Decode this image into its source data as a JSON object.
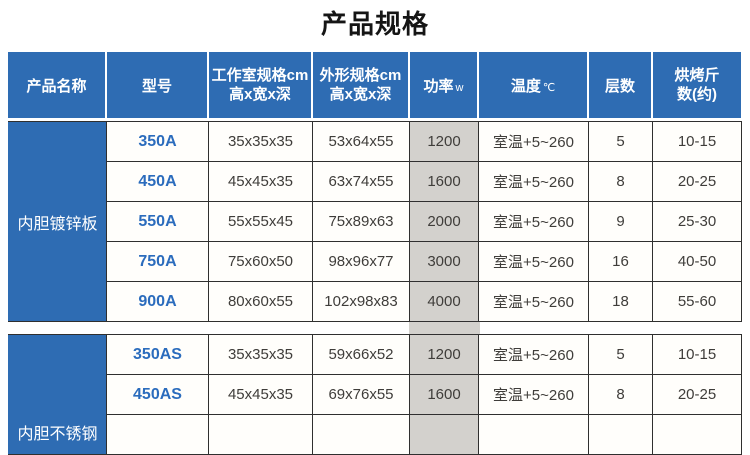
{
  "title": "产品规格",
  "colors": {
    "header_blue": "#2e6cb3",
    "power_gray": "#d3d1cd",
    "model_blue": "#2b6cbd",
    "border_dark": "#2f2f2f",
    "body_text": "#3f3d3a"
  },
  "table": {
    "headers": {
      "product": "产品名称",
      "model": "型号",
      "chamber_line1": "工作室规格cm",
      "chamber_line2": "高x宽x深",
      "outer_line1": "外形规格cm",
      "outer_line2": "高x宽x深",
      "power_main": "功率",
      "power_unit": "w",
      "temp_main": "温度",
      "temp_unit": "℃",
      "layers": "层数",
      "capacity_line1": "烘烤斤",
      "capacity_line2": "数(约)"
    },
    "groups": [
      {
        "name": "内胆镀锌板",
        "filler_rows": 0,
        "rows": [
          {
            "model": "350A",
            "chamber": "35x35x35",
            "outer": "53x64x55",
            "power": "1200",
            "temp": "室温+5~260",
            "layers": "5",
            "capacity": "10-15"
          },
          {
            "model": "450A",
            "chamber": "45x45x35",
            "outer": "63x74x55",
            "power": "1600",
            "temp": "室温+5~260",
            "layers": "8",
            "capacity": "20-25"
          },
          {
            "model": "550A",
            "chamber": "55x55x45",
            "outer": "75x89x63",
            "power": "2000",
            "temp": "室温+5~260",
            "layers": "9",
            "capacity": "25-30"
          },
          {
            "model": "750A",
            "chamber": "75x60x50",
            "outer": "98x96x77",
            "power": "3000",
            "temp": "室温+5~260",
            "layers": "16",
            "capacity": "40-50"
          },
          {
            "model": "900A",
            "chamber": "80x60x55",
            "outer": "102x98x83",
            "power": "4000",
            "temp": "室温+5~260",
            "layers": "18",
            "capacity": "55-60"
          }
        ]
      },
      {
        "name": "内胆不锈钢",
        "filler_rows": 1,
        "rows": [
          {
            "model": "350AS",
            "chamber": "35x35x35",
            "outer": "59x66x52",
            "power": "1200",
            "temp": "室温+5~260",
            "layers": "5",
            "capacity": "10-15"
          },
          {
            "model": "450AS",
            "chamber": "45x45x35",
            "outer": "69x76x55",
            "power": "1600",
            "temp": "室温+5~260",
            "layers": "8",
            "capacity": "20-25"
          }
        ]
      }
    ]
  }
}
